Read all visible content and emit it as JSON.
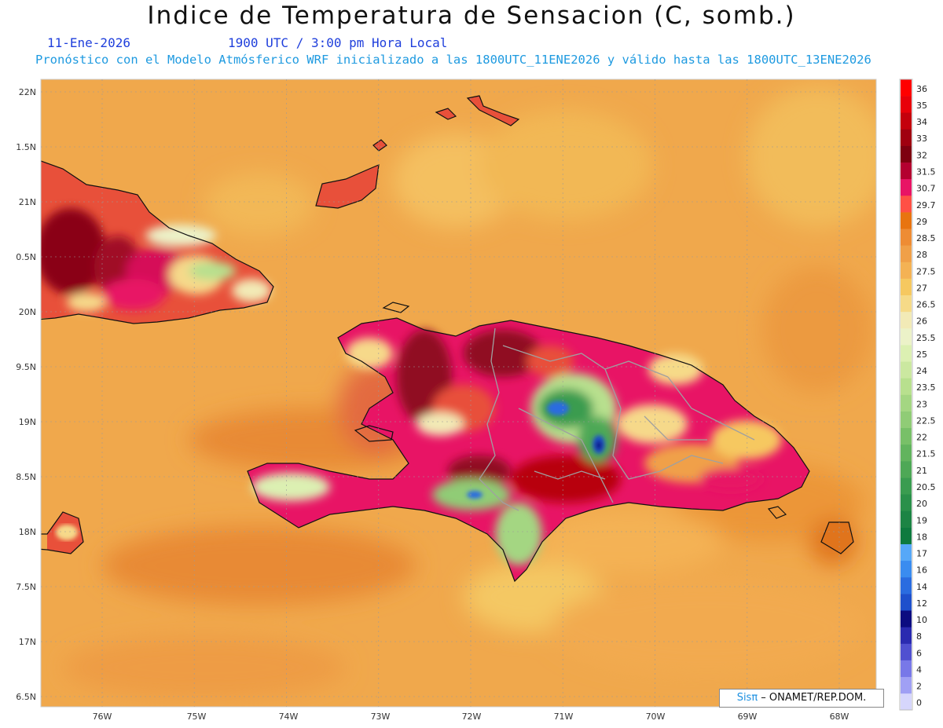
{
  "header": {
    "title": "Indice de Temperatura de Sensacion (C, somb.)",
    "date": "11-Ene-2026",
    "time": "1900 UTC / 3:00 pm Hora Local",
    "info": "Pronóstico con el Modelo Atmósferico WRF inicializado a las 1800UTC_11ENE2026 y válido hasta las  1800UTC_13ENE2026"
  },
  "map": {
    "lat_ticks": [
      "22N",
      "1.5N",
      "21N",
      "0.5N",
      "20N",
      "9.5N",
      "19N",
      "8.5N",
      "18N",
      "7.5N",
      "17N",
      "6.5N"
    ],
    "lon_ticks": [
      "76W",
      "75W",
      "74W",
      "73W",
      "72W",
      "71W",
      "70W",
      "69W",
      "68W"
    ],
    "base_color": "#f0a84c"
  },
  "legend": {
    "levels": [
      {
        "label": "36",
        "color": "#ff0000"
      },
      {
        "label": "35",
        "color": "#e8000a"
      },
      {
        "label": "34",
        "color": "#c4000c"
      },
      {
        "label": "33",
        "color": "#a00010"
      },
      {
        "label": "32",
        "color": "#7e0010"
      },
      {
        "label": "31.5",
        "color": "#b40030"
      },
      {
        "label": "30.7",
        "color": "#e81465"
      },
      {
        "label": "29.7",
        "color": "#ff5045"
      },
      {
        "label": "29",
        "color": "#e87410"
      },
      {
        "label": "28.5",
        "color": "#ee8c34"
      },
      {
        "label": "28",
        "color": "#f0a048"
      },
      {
        "label": "27.5",
        "color": "#f4b254"
      },
      {
        "label": "27",
        "color": "#f6c860"
      },
      {
        "label": "26.5",
        "color": "#f6da88"
      },
      {
        "label": "26",
        "color": "#f2eab6"
      },
      {
        "label": "25.5",
        "color": "#ecf2c8"
      },
      {
        "label": "25",
        "color": "#dcf0b2"
      },
      {
        "label": "24",
        "color": "#cbe8a0"
      },
      {
        "label": "23.5",
        "color": "#b8e08e"
      },
      {
        "label": "23",
        "color": "#a4d682"
      },
      {
        "label": "22.5",
        "color": "#90cc76"
      },
      {
        "label": "22",
        "color": "#78c068"
      },
      {
        "label": "21.5",
        "color": "#62b45e"
      },
      {
        "label": "21",
        "color": "#4ea856"
      },
      {
        "label": "20.5",
        "color": "#3a9c50"
      },
      {
        "label": "20",
        "color": "#2a904a"
      },
      {
        "label": "19",
        "color": "#1c8444"
      },
      {
        "label": "18",
        "color": "#0e7a3e"
      },
      {
        "label": "17",
        "color": "#56a8f8"
      },
      {
        "label": "16",
        "color": "#3a8cf0"
      },
      {
        "label": "14",
        "color": "#2a6ce0"
      },
      {
        "label": "12",
        "color": "#1e50cc"
      },
      {
        "label": "10",
        "color": "#0c0c80"
      },
      {
        "label": "8",
        "color": "#2a2ab0"
      },
      {
        "label": "6",
        "color": "#5050d0"
      },
      {
        "label": "4",
        "color": "#7878e8"
      },
      {
        "label": "2",
        "color": "#a0a0f4"
      },
      {
        "label": "0",
        "color": "#d6d6fc"
      }
    ]
  },
  "credit": {
    "logo": "Sisπ",
    "text": " – ONAMET/REP.DOM."
  }
}
